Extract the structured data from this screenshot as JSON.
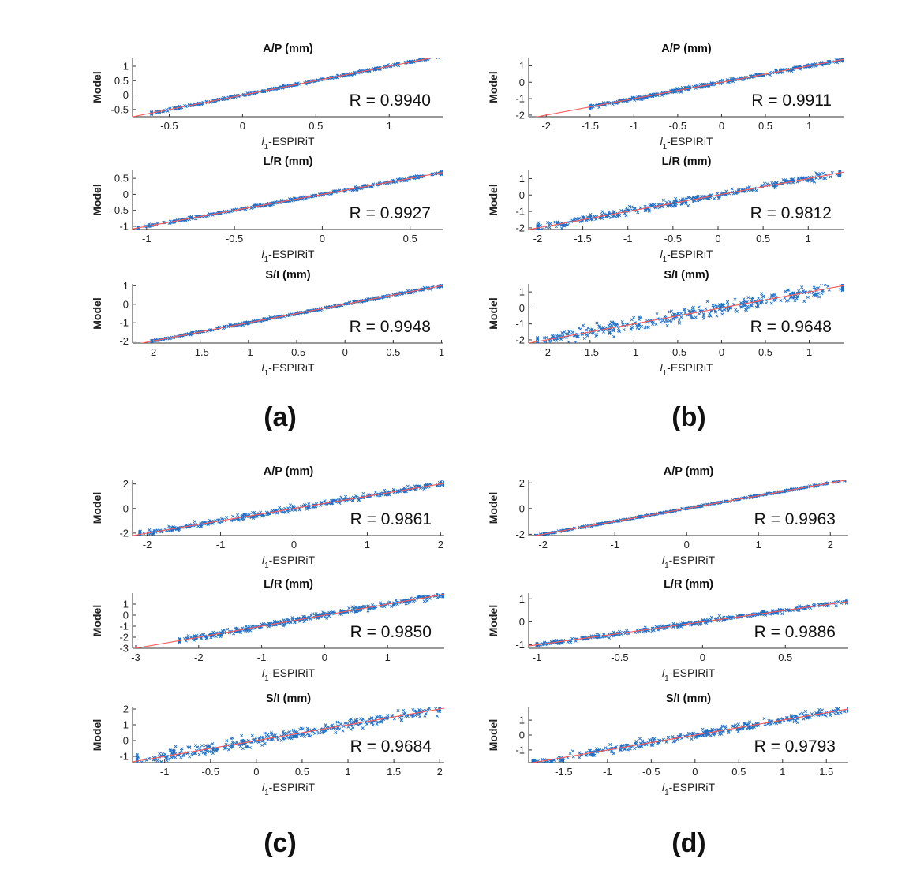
{
  "panel_labels": [
    "(a)",
    "(b)",
    "(c)",
    "(d)"
  ],
  "chart_data": [
    {
      "panel": "(a)",
      "type": "scatter",
      "title": "A/P (mm)",
      "xlabel_main": "l",
      "xlabel_sub": "1",
      "xlabel_rest": "-ESPIRiT",
      "ylabel": "Model",
      "xlim": [
        -0.75,
        1.37
      ],
      "ylim": [
        -0.75,
        1.3
      ],
      "xticks": [
        -0.5,
        0,
        0.5,
        1
      ],
      "yticks": [
        -0.5,
        0,
        0.5,
        1
      ],
      "r_text": "R = 0.9940",
      "r": 0.994,
      "x_data_range": [
        -0.62,
        1.35
      ],
      "marker_color": "#1f6fc5",
      "fit_color": "#ff5a5a"
    },
    {
      "panel": "(a)",
      "type": "scatter",
      "title": "L/R (mm)",
      "xlabel_main": "l",
      "xlabel_sub": "1",
      "xlabel_rest": "-ESPIRiT",
      "ylabel": "Model",
      "xlim": [
        -1.08,
        0.69
      ],
      "ylim": [
        -1.1,
        0.75
      ],
      "xticks": [
        -1,
        -0.5,
        0,
        0.5
      ],
      "yticks": [
        -1,
        -0.5,
        0,
        0.5
      ],
      "r_text": "R = 0.9927",
      "r": 0.9927,
      "x_data_range": [
        -1.05,
        0.68
      ],
      "marker_color": "#1f6fc5",
      "fit_color": "#ff5a5a"
    },
    {
      "panel": "(a)",
      "type": "scatter",
      "title": "S/I (mm)",
      "xlabel_main": "l",
      "xlabel_sub": "1",
      "xlabel_rest": "-ESPIRiT",
      "ylabel": "Model",
      "xlim": [
        -2.2,
        1.02
      ],
      "ylim": [
        -2.1,
        1.1
      ],
      "xticks": [
        -2,
        -1.5,
        -1,
        -0.5,
        0,
        0.5,
        1
      ],
      "yticks": [
        -2,
        -1,
        0,
        1
      ],
      "r_text": "R = 0.9948",
      "r": 0.9948,
      "x_data_range": [
        -2.0,
        1.0
      ],
      "marker_color": "#1f6fc5",
      "fit_color": "#ff5a5a"
    },
    {
      "panel": "(b)",
      "type": "scatter",
      "title": "A/P (mm)",
      "xlabel_main": "l",
      "xlabel_sub": "1",
      "xlabel_rest": "-ESPIRiT",
      "ylabel": "Model",
      "xlim": [
        -2.2,
        1.4
      ],
      "ylim": [
        -2.1,
        1.5
      ],
      "xticks": [
        -2,
        -1.5,
        -1,
        -0.5,
        0,
        0.5,
        1
      ],
      "yticks": [
        -2,
        -1,
        0,
        1
      ],
      "r_text": "R = 0.9911",
      "r": 0.9911,
      "x_data_range": [
        -1.5,
        1.38
      ],
      "marker_color": "#1f6fc5",
      "fit_color": "#ff5a5a"
    },
    {
      "panel": "(b)",
      "type": "scatter",
      "title": "L/R (mm)",
      "xlabel_main": "l",
      "xlabel_sub": "1",
      "xlabel_rest": "-ESPIRiT",
      "ylabel": "Model",
      "xlim": [
        -2.1,
        1.4
      ],
      "ylim": [
        -2.1,
        1.5
      ],
      "xticks": [
        -2,
        -1.5,
        -1,
        -0.5,
        0,
        0.5,
        1
      ],
      "yticks": [
        -2,
        -1,
        0,
        1
      ],
      "r_text": "R = 0.9812",
      "r": 0.9812,
      "x_data_range": [
        -2.0,
        1.35
      ],
      "marker_color": "#1f6fc5",
      "fit_color": "#ff5a5a"
    },
    {
      "panel": "(b)",
      "type": "scatter",
      "title": "S/I (mm)",
      "xlabel_main": "l",
      "xlabel_sub": "1",
      "xlabel_rest": "-ESPIRiT",
      "ylabel": "Model",
      "xlim": [
        -2.2,
        1.4
      ],
      "ylim": [
        -2.2,
        1.5
      ],
      "xticks": [
        -2,
        -1.5,
        -1,
        -0.5,
        0,
        0.5,
        1
      ],
      "yticks": [
        -2,
        -1,
        0,
        1
      ],
      "r_text": "R = 0.9648",
      "r": 0.9648,
      "x_data_range": [
        -2.1,
        1.38
      ],
      "marker_color": "#1f6fc5",
      "fit_color": "#ff5a5a"
    },
    {
      "panel": "(c)",
      "type": "scatter",
      "title": "A/P (mm)",
      "xlabel_main": "l",
      "xlabel_sub": "1",
      "xlabel_rest": "-ESPIRiT",
      "ylabel": "Model",
      "xlim": [
        -2.2,
        2.05
      ],
      "ylim": [
        -2.2,
        2.3
      ],
      "xticks": [
        -2,
        -1,
        0,
        1,
        2
      ],
      "yticks": [
        -2,
        0,
        2
      ],
      "r_text": "R = 0.9861",
      "r": 0.9861,
      "x_data_range": [
        -2.1,
        2.05
      ],
      "marker_color": "#1f6fc5",
      "fit_color": "#ff5a5a"
    },
    {
      "panel": "(c)",
      "type": "scatter",
      "title": "L/R (mm)",
      "xlabel_main": "l",
      "xlabel_sub": "1",
      "xlabel_rest": "-ESPIRiT",
      "ylabel": "Model",
      "xlim": [
        -3.05,
        1.9
      ],
      "ylim": [
        -3.0,
        2.0
      ],
      "xticks": [
        -3,
        -2,
        -1,
        0,
        1
      ],
      "yticks": [
        -3,
        -2,
        -1,
        0,
        1
      ],
      "r_text": "R = 0.9850",
      "r": 0.985,
      "x_data_range": [
        -2.3,
        1.88
      ],
      "marker_color": "#1f6fc5",
      "fit_color": "#ff5a5a"
    },
    {
      "panel": "(c)",
      "type": "scatter",
      "title": "S/I (mm)",
      "xlabel_main": "l",
      "xlabel_sub": "1",
      "xlabel_rest": "-ESPIRiT",
      "ylabel": "Model",
      "xlim": [
        -1.35,
        2.05
      ],
      "ylim": [
        -1.4,
        2.1
      ],
      "xticks": [
        -1,
        -0.5,
        0,
        0.5,
        1,
        1.5,
        2
      ],
      "yticks": [
        -1,
        0,
        1,
        2
      ],
      "r_text": "R = 0.9684",
      "r": 0.9684,
      "x_data_range": [
        -1.3,
        2.0
      ],
      "marker_color": "#1f6fc5",
      "fit_color": "#ff5a5a"
    },
    {
      "panel": "(d)",
      "type": "scatter",
      "title": "A/P (mm)",
      "xlabel_main": "l",
      "xlabel_sub": "1",
      "xlabel_rest": "-ESPIRiT",
      "ylabel": "Model",
      "xlim": [
        -2.2,
        2.25
      ],
      "ylim": [
        -2.1,
        2.2
      ],
      "xticks": [
        -2,
        -1,
        0,
        1,
        2
      ],
      "yticks": [
        -2,
        0,
        2
      ],
      "r_text": "R = 0.9963",
      "r": 0.9963,
      "x_data_range": [
        -2.1,
        2.2
      ],
      "marker_color": "#1f6fc5",
      "fit_color": "#ff5a5a"
    },
    {
      "panel": "(d)",
      "type": "scatter",
      "title": "L/R (mm)",
      "xlabel_main": "l",
      "xlabel_sub": "1",
      "xlabel_rest": "-ESPIRiT",
      "ylabel": "Model",
      "xlim": [
        -1.05,
        0.88
      ],
      "ylim": [
        -1.15,
        1.25
      ],
      "xticks": [
        -1,
        -0.5,
        0,
        0.5
      ],
      "yticks": [
        -1,
        0,
        1
      ],
      "r_text": "R = 0.9886",
      "r": 0.9886,
      "x_data_range": [
        -1.0,
        0.87
      ],
      "marker_color": "#1f6fc5",
      "fit_color": "#ff5a5a"
    },
    {
      "panel": "(d)",
      "type": "scatter",
      "title": "S/I (mm)",
      "xlabel_main": "l",
      "xlabel_sub": "1",
      "xlabel_rest": "-ESPIRiT",
      "ylabel": "Model",
      "xlim": [
        -1.9,
        1.75
      ],
      "ylim": [
        -1.85,
        1.85
      ],
      "xticks": [
        -1.5,
        -1,
        -0.5,
        0,
        0.5,
        1,
        1.5
      ],
      "yticks": [
        -1,
        0,
        1
      ],
      "r_text": "R = 0.9793",
      "r": 0.9793,
      "x_data_range": [
        -1.85,
        1.75
      ],
      "marker_color": "#1f6fc5",
      "fit_color": "#ff5a5a"
    }
  ]
}
